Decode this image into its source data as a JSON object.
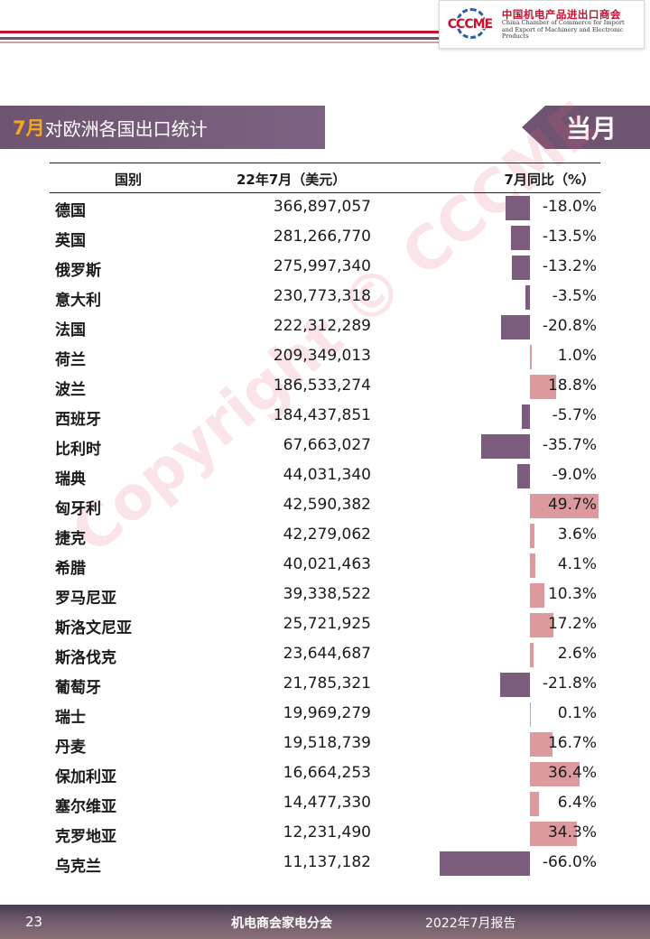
{
  "header": {
    "logo_mark": "CCCME",
    "logo_cn": "中国机电产品进出口商会",
    "logo_en_1": "China Chamber of Commerce for Import",
    "logo_en_2": "and Export of Machinery and Electronic Products",
    "colors": {
      "stripe_red": "#c8102e",
      "stripe_purple": "#6e5470"
    }
  },
  "title": {
    "highlight": "7月",
    "text": "对欧洲各国出口统计",
    "tag": "当月"
  },
  "table": {
    "headers": [
      "国别",
      "22年7月（美元）",
      "7月同比（%）"
    ],
    "rows": [
      {
        "country": "德国",
        "value": "366,897,057",
        "yoy": "-18.0%",
        "yoy_num": -18.0
      },
      {
        "country": "英国",
        "value": "281,266,770",
        "yoy": "-13.5%",
        "yoy_num": -13.5
      },
      {
        "country": "俄罗斯",
        "value": "275,997,340",
        "yoy": "-13.2%",
        "yoy_num": -13.2
      },
      {
        "country": "意大利",
        "value": "230,773,318",
        "yoy": "-3.5%",
        "yoy_num": -3.5
      },
      {
        "country": "法国",
        "value": "222,312,289",
        "yoy": "-20.8%",
        "yoy_num": -20.8
      },
      {
        "country": "荷兰",
        "value": "209,349,013",
        "yoy": "1.0%",
        "yoy_num": 1.0
      },
      {
        "country": "波兰",
        "value": "186,533,274",
        "yoy": "18.8%",
        "yoy_num": 18.8
      },
      {
        "country": "西班牙",
        "value": "184,437,851",
        "yoy": "-5.7%",
        "yoy_num": -5.7
      },
      {
        "country": "比利时",
        "value": "67,663,027",
        "yoy": "-35.7%",
        "yoy_num": -35.7
      },
      {
        "country": "瑞典",
        "value": "44,031,340",
        "yoy": "-9.0%",
        "yoy_num": -9.0
      },
      {
        "country": "匈牙利",
        "value": "42,590,382",
        "yoy": "49.7%",
        "yoy_num": 49.7
      },
      {
        "country": "捷克",
        "value": "42,279,062",
        "yoy": "3.6%",
        "yoy_num": 3.6
      },
      {
        "country": "希腊",
        "value": "40,021,463",
        "yoy": "4.1%",
        "yoy_num": 4.1
      },
      {
        "country": "罗马尼亚",
        "value": "39,338,522",
        "yoy": "10.3%",
        "yoy_num": 10.3
      },
      {
        "country": "斯洛文尼亚",
        "value": "25,721,925",
        "yoy": "17.2%",
        "yoy_num": 17.2
      },
      {
        "country": "斯洛伐克",
        "value": "23,644,687",
        "yoy": "2.6%",
        "yoy_num": 2.6
      },
      {
        "country": "葡萄牙",
        "value": "21,785,321",
        "yoy": "-21.8%",
        "yoy_num": -21.8
      },
      {
        "country": "瑞士",
        "value": "19,969,279",
        "yoy": "0.1%",
        "yoy_num": 0.1
      },
      {
        "country": "丹麦",
        "value": "19,518,739",
        "yoy": "16.7%",
        "yoy_num": 16.7
      },
      {
        "country": "保加利亚",
        "value": "16,664,253",
        "yoy": "36.4%",
        "yoy_num": 36.4
      },
      {
        "country": "塞尔维亚",
        "value": "14,477,330",
        "yoy": "6.4%",
        "yoy_num": 6.4
      },
      {
        "country": "克罗地亚",
        "value": "12,231,490",
        "yoy": "34.3%",
        "yoy_num": 34.3
      },
      {
        "country": "乌克兰",
        "value": "11,137,182",
        "yoy": "-66.0%",
        "yoy_num": -66.0
      }
    ],
    "colors": {
      "negative": "#7b5c7d",
      "positive": "#dc9a9f"
    }
  },
  "watermark": "Copyright © CCCME",
  "footer": {
    "page": "23",
    "org": "机电商会家电分会",
    "report": "2022年7月报告"
  }
}
